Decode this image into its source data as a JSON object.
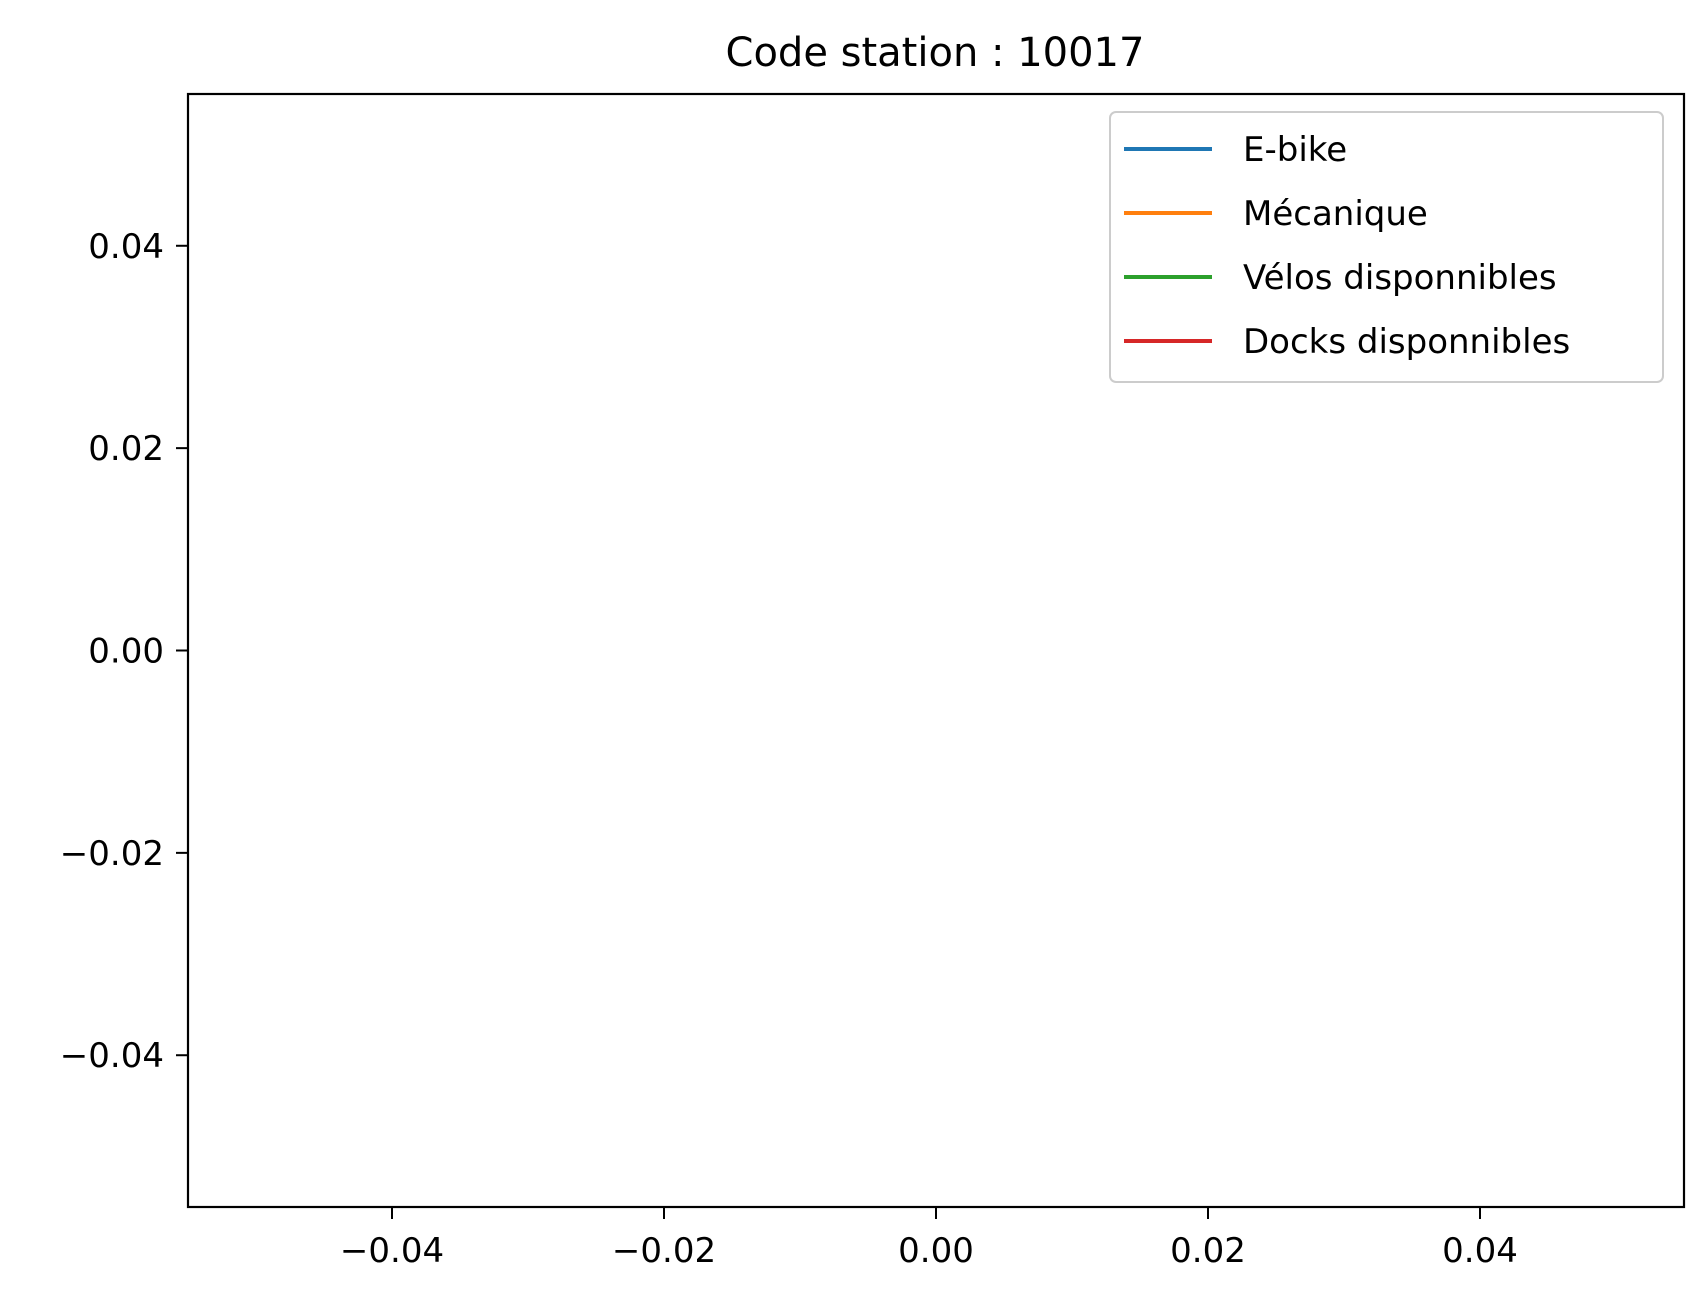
{
  "chart_data": {
    "type": "line",
    "title": "Code station : 10017",
    "xlabel": "",
    "ylabel": "",
    "xlim": [
      -0.055,
      0.055
    ],
    "ylim": [
      -0.055,
      0.055
    ],
    "xticks": [
      -0.04,
      -0.02,
      0.0,
      0.02,
      0.04
    ],
    "xtick_labels": [
      "−0.04",
      "−0.02",
      "0.00",
      "0.02",
      "0.04"
    ],
    "yticks": [
      0.04,
      0.02,
      0.0,
      -0.02,
      -0.04
    ],
    "ytick_labels": [
      "0.04",
      "0.02",
      "0.00",
      "−0.02",
      "−0.04"
    ],
    "grid": false,
    "legend_position": "top-right",
    "series": [
      {
        "name": "E-bike",
        "color": "#1f77b4",
        "x": [],
        "y": []
      },
      {
        "name": "Mécanique",
        "color": "#ff7f0e",
        "x": [],
        "y": []
      },
      {
        "name": "Vélos disponnibles",
        "color": "#2ca02c",
        "x": [],
        "y": []
      },
      {
        "name": "Docks disponnibles",
        "color": "#d62728",
        "x": [],
        "y": []
      }
    ]
  }
}
